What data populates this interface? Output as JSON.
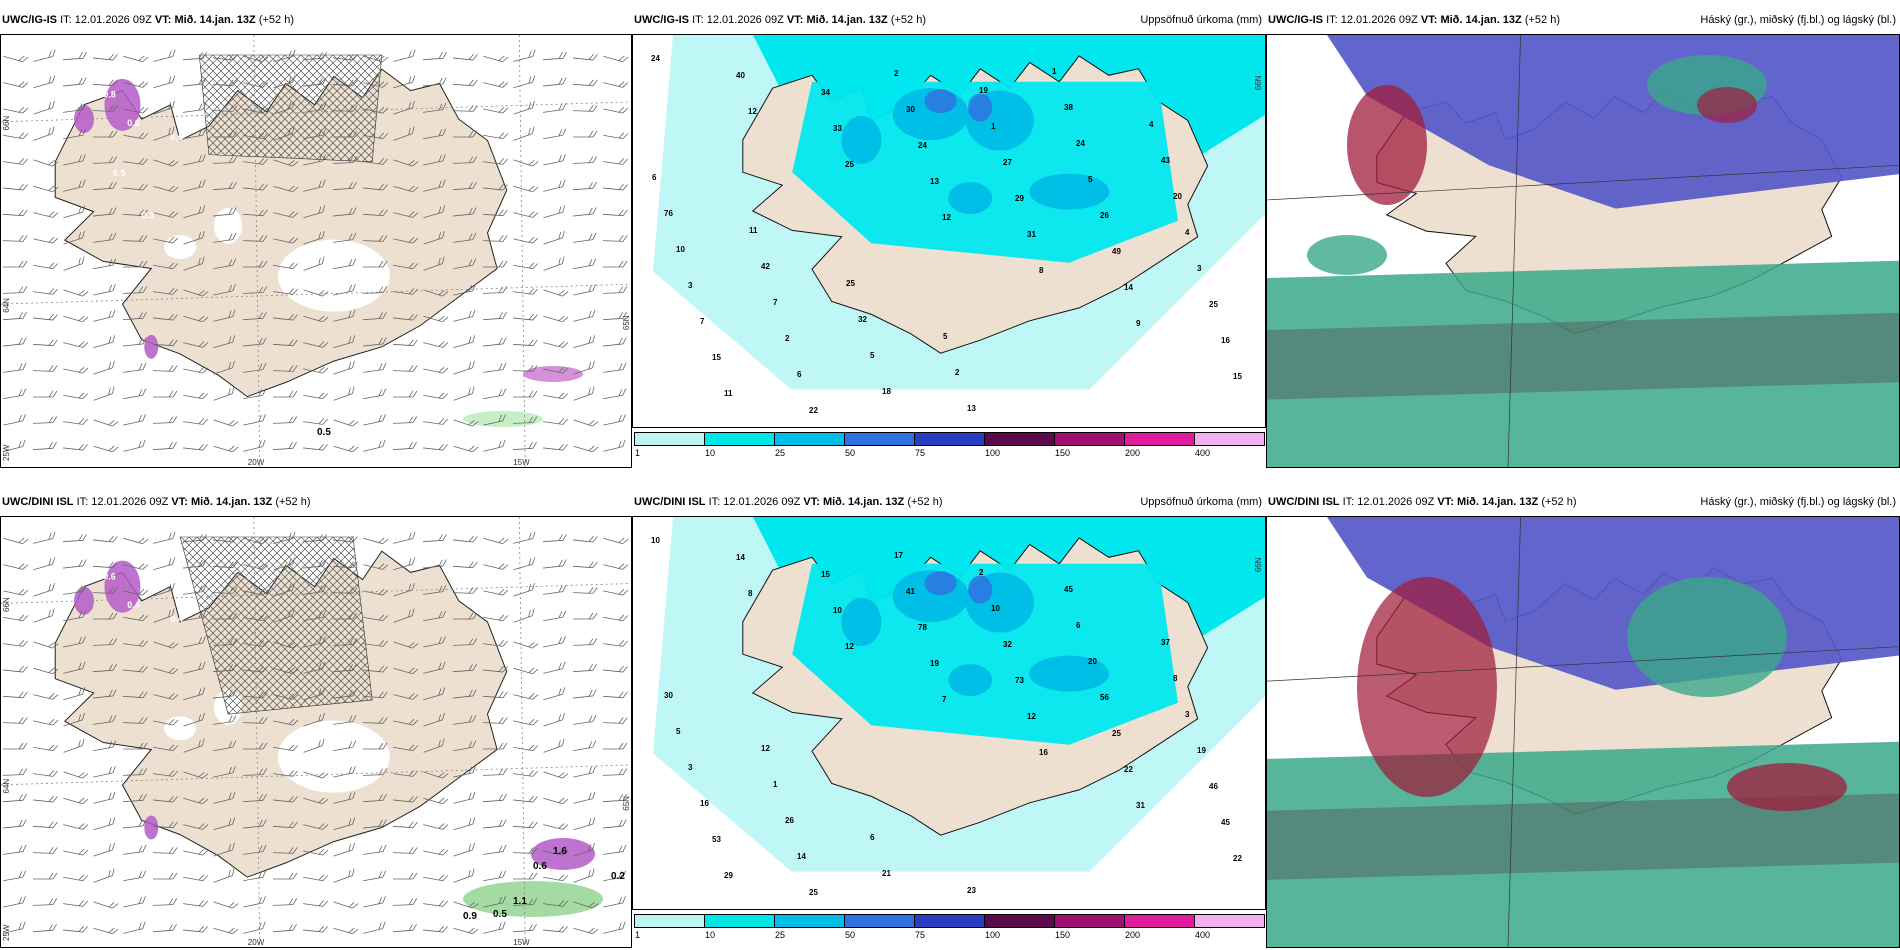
{
  "panels": [
    {
      "model": "UWC/IG-IS",
      "it": "12.01.2026 09Z",
      "vt_label": "VT:",
      "vt": "Mið. 14.jan. 13Z",
      "lead": "(+52 h)",
      "right_title": ""
    },
    {
      "model": "UWC/IG-IS",
      "it": "12.01.2026 09Z",
      "vt_label": "VT:",
      "vt": "Mið. 14.jan. 13Z",
      "lead": "(+52 h)",
      "right_title": "Uppsöfnuð úrkoma (mm)"
    },
    {
      "model": "UWC/IG-IS",
      "it": "12.01.2026 09Z",
      "vt_label": "VT:",
      "vt": "Mið. 14.jan. 13Z",
      "lead": "(+52 h)",
      "right_title": "Háský (gr.), miðský (fj.bl.) og lágský (bl.)"
    },
    {
      "model": "UWC/DINI ISL",
      "it": "12.01.2026 09Z",
      "vt_label": "VT:",
      "vt": "Mið. 14.jan. 13Z",
      "lead": "(+52 h)",
      "right_title": ""
    },
    {
      "model": "UWC/DINI ISL",
      "it": "12.01.2026 09Z",
      "vt_label": "VT:",
      "vt": "Mið. 14.jan. 13Z",
      "lead": "(+52 h)",
      "right_title": "Uppsöfnuð úrkoma (mm)"
    },
    {
      "model": "UWC/DINI ISL",
      "it": "12.01.2026 09Z",
      "vt_label": "VT:",
      "vt": "Mið. 14.jan. 13Z",
      "lead": "(+52 h)",
      "right_title": "Háský (gr.), miðský (fj.bl.) og lágský (bl.)"
    }
  ],
  "it_label": "IT:",
  "grid_labels": {
    "lat_66": "66N",
    "lat_64": "64N",
    "lon_20": "20W",
    "lon_15": "15W",
    "lat_65": "65N",
    "lon_25": "25W"
  },
  "precip_legend": {
    "labels": [
      "1",
      "10",
      "25",
      "50",
      "75",
      "100",
      "150",
      "200",
      "400"
    ],
    "colors": [
      "#bdf5f3",
      "#00e6e6",
      "#00bde6",
      "#2f6fe0",
      "#2a3dc0",
      "#5a0a4a",
      "#a0106e",
      "#e01c9c",
      "#f2b0ee"
    ]
  },
  "map_colors": {
    "land": "#ede0d0",
    "snow": "#ffffff",
    "sea_precip": "#bff7f6",
    "cyan": "#00e8ee",
    "mid_blue": "#5558c8",
    "green": "#3aa88a",
    "red": "#a01c3c"
  },
  "panel1_labels": {
    "top": [
      "0.8",
      "0.6",
      "0.6",
      "0.5",
      "0.3"
    ],
    "bottom": [
      "0.5"
    ]
  },
  "panel4_labels": {
    "top": [
      "0.6",
      "0.4",
      "0.4"
    ],
    "bottom": [
      "1.6",
      "0.6",
      "0.2",
      "0.9",
      "0.5",
      "1.1"
    ]
  },
  "precip_top_values": [
    "24",
    "12",
    "25",
    "12",
    "8",
    "9",
    "15",
    "40",
    "33",
    "13",
    "31",
    "14",
    "16",
    "11",
    "34",
    "24",
    "29",
    "49",
    "25",
    "15",
    "22",
    "30",
    "27",
    "26",
    "3",
    "7",
    "6",
    "2",
    "1",
    "5",
    "4",
    "3",
    "2",
    "18",
    "19",
    "24",
    "20",
    "10",
    "7",
    "5",
    "13",
    "38",
    "43",
    "76",
    "42",
    "32",
    "2",
    "1",
    "4",
    "6",
    "11",
    "25",
    "5"
  ],
  "precip_bottom_values": [
    "10",
    "8",
    "12",
    "7",
    "16",
    "31",
    "22",
    "14",
    "10",
    "19",
    "12",
    "22",
    "45",
    "29",
    "15",
    "78",
    "73",
    "25",
    "46",
    "53",
    "25",
    "41",
    "32",
    "56",
    "19",
    "16",
    "14",
    "17",
    "10",
    "20",
    "3",
    "3",
    "26",
    "21",
    "2",
    "6",
    "8",
    "5",
    "1",
    "6",
    "23",
    "45",
    "37",
    "30",
    "12"
  ]
}
